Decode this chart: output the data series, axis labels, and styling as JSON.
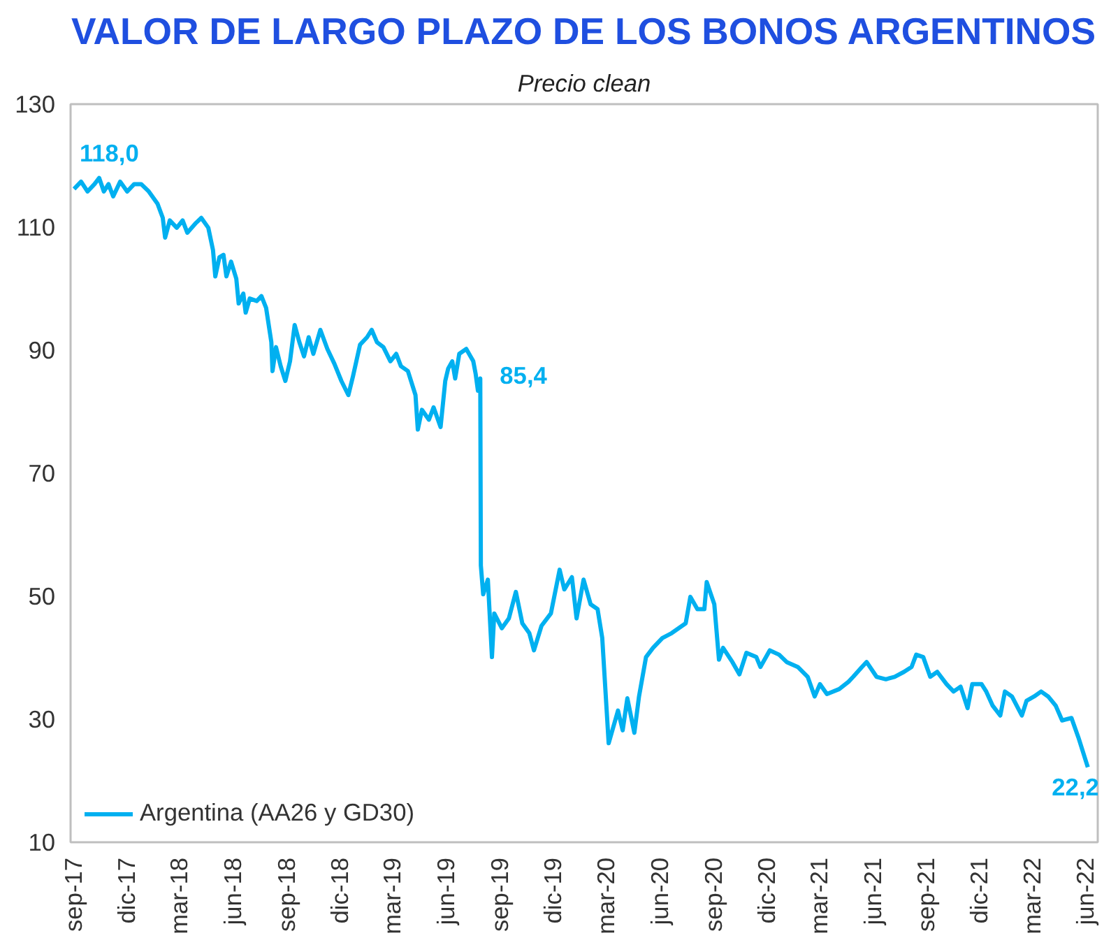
{
  "chart_data": {
    "type": "line",
    "title": "VALOR DE LARGO PLAZO DE LOS BONOS ARGENTINOS",
    "subtitle": "Precio clean",
    "x": [
      "2017-09-02",
      "2017-09-14",
      "2017-09-25",
      "2017-10-07",
      "2017-10-15",
      "2017-10-23",
      "2017-10-31",
      "2017-11-08",
      "2017-11-20",
      "2017-12-02",
      "2017-12-14",
      "2017-12-26",
      "2018-01-08",
      "2018-01-23",
      "2018-02-01",
      "2018-02-05",
      "2018-02-13",
      "2018-02-25",
      "2018-03-07",
      "2018-03-15",
      "2018-03-30",
      "2018-04-08",
      "2018-04-20",
      "2018-04-28",
      "2018-05-02",
      "2018-05-09",
      "2018-05-16",
      "2018-05-21",
      "2018-05-29",
      "2018-06-07",
      "2018-06-11",
      "2018-06-19",
      "2018-06-23",
      "2018-06-30",
      "2018-07-12",
      "2018-07-20",
      "2018-07-28",
      "2018-08-06",
      "2018-08-08",
      "2018-08-14",
      "2018-08-22",
      "2018-08-30",
      "2018-09-07",
      "2018-09-15",
      "2018-09-23",
      "2018-10-01",
      "2018-10-09",
      "2018-10-17",
      "2018-10-29",
      "2018-11-10",
      "2018-11-22",
      "2018-12-04",
      "2018-12-16",
      "2018-12-24",
      "2019-01-05",
      "2019-01-17",
      "2019-01-25",
      "2019-02-03",
      "2019-02-14",
      "2019-02-26",
      "2019-03-08",
      "2019-03-16",
      "2019-03-28",
      "2019-04-10",
      "2019-04-14",
      "2019-04-21",
      "2019-05-03",
      "2019-05-11",
      "2019-05-23",
      "2019-05-31",
      "2019-06-05",
      "2019-06-12",
      "2019-06-17",
      "2019-06-24",
      "2019-07-06",
      "2019-07-18",
      "2019-07-22",
      "2019-07-26",
      "2019-07-30",
      "2019-07-31",
      "2019-08-04",
      "2019-08-12",
      "2019-08-19",
      "2019-08-23",
      "2019-09-05",
      "2019-09-17",
      "2019-09-29",
      "2019-10-10",
      "2019-10-22",
      "2019-10-30",
      "2019-11-12",
      "2019-11-28",
      "2019-12-13",
      "2019-12-21",
      "2020-01-03",
      "2020-01-11",
      "2020-01-23",
      "2020-02-04",
      "2020-02-16",
      "2020-02-24",
      "2020-03-06",
      "2020-03-22",
      "2020-03-30",
      "2020-04-07",
      "2020-04-19",
      "2020-04-27",
      "2020-05-09",
      "2020-05-21",
      "2020-06-06",
      "2020-06-22",
      "2020-07-04",
      "2020-07-16",
      "2020-07-24",
      "2020-08-05",
      "2020-08-17",
      "2020-08-21",
      "2020-09-03",
      "2020-09-11",
      "2020-09-18",
      "2020-10-04",
      "2020-10-16",
      "2020-10-28",
      "2020-11-14",
      "2020-11-21",
      "2020-12-07",
      "2020-12-23",
      "2021-01-05",
      "2021-01-24",
      "2021-02-10",
      "2021-02-22",
      "2021-03-03",
      "2021-03-15",
      "2021-04-05",
      "2021-04-21",
      "2021-04-29",
      "2021-05-14",
      "2021-05-22",
      "2021-06-08",
      "2021-06-24",
      "2021-07-09",
      "2021-07-25",
      "2021-08-07",
      "2021-08-15",
      "2021-08-27",
      "2021-09-08",
      "2021-09-20",
      "2021-10-06",
      "2021-10-18",
      "2021-10-30",
      "2021-11-11",
      "2021-11-19",
      "2021-12-05",
      "2021-12-13",
      "2021-12-24",
      "2022-01-06",
      "2022-01-14",
      "2022-01-26",
      "2022-02-12",
      "2022-02-20",
      "2022-03-05",
      "2022-03-17",
      "2022-03-29",
      "2022-04-11",
      "2022-04-22",
      "2022-05-08",
      "2022-05-20",
      "2022-06-05"
    ],
    "series": [
      {
        "name": "Argentina (AA26 y GD30)",
        "color": "#00b0f0",
        "values": [
          116.2,
          117.4,
          115.8,
          117.0,
          118.0,
          115.8,
          117.0,
          115.0,
          117.4,
          115.8,
          117.0,
          117.0,
          115.8,
          113.8,
          111.5,
          108.3,
          111.1,
          109.9,
          111.1,
          109.1,
          110.7,
          111.5,
          109.9,
          106.3,
          102.0,
          105.1,
          105.5,
          102.0,
          104.4,
          101.6,
          97.6,
          99.2,
          96.1,
          98.4,
          98.0,
          98.8,
          96.9,
          91.3,
          86.6,
          90.5,
          87.4,
          85.0,
          88.2,
          94.1,
          91.3,
          89.0,
          92.1,
          89.4,
          93.3,
          90.2,
          87.8,
          85.0,
          82.7,
          85.8,
          90.9,
          92.1,
          93.3,
          91.3,
          90.5,
          88.2,
          89.4,
          87.4,
          86.6,
          82.7,
          77.1,
          80.3,
          78.7,
          80.7,
          77.5,
          85.0,
          87.0,
          88.2,
          85.4,
          89.4,
          90.2,
          88.2,
          86.2,
          83.4,
          85.4,
          55.0,
          50.3,
          52.7,
          40.1,
          47.2,
          44.8,
          46.4,
          50.7,
          45.6,
          44.0,
          41.2,
          45.2,
          47.2,
          54.3,
          51.1,
          53.1,
          46.4,
          52.7,
          48.7,
          47.9,
          43.2,
          26.1,
          31.4,
          28.2,
          33.4,
          27.8,
          33.7,
          40.1,
          41.6,
          43.2,
          44.0,
          44.8,
          45.6,
          49.9,
          47.9,
          47.9,
          52.3,
          48.7,
          39.7,
          41.6,
          39.3,
          37.3,
          40.8,
          40.1,
          38.5,
          41.2,
          40.5,
          39.3,
          38.5,
          36.9,
          33.7,
          35.7,
          34.1,
          34.9,
          36.1,
          36.9,
          38.5,
          39.3,
          36.9,
          36.5,
          36.9,
          37.7,
          38.5,
          40.5,
          40.1,
          36.9,
          37.7,
          35.7,
          34.5,
          35.3,
          31.8,
          35.7,
          35.7,
          34.5,
          32.2,
          30.6,
          34.5,
          33.7,
          30.6,
          33.0,
          33.7,
          34.5,
          33.7,
          32.2,
          29.8,
          30.2,
          27.0,
          22.2
        ]
      }
    ],
    "xlim": [
      "2017-08-27",
      "2022-06-22"
    ],
    "xticks": [
      {
        "value": "2017-09-01",
        "label": "sep-17"
      },
      {
        "value": "2017-12-01",
        "label": "dic-17"
      },
      {
        "value": "2018-03-01",
        "label": "mar-18"
      },
      {
        "value": "2018-06-01",
        "label": "jun-18"
      },
      {
        "value": "2018-09-01",
        "label": "sep-18"
      },
      {
        "value": "2018-12-01",
        "label": "dic-18"
      },
      {
        "value": "2019-03-01",
        "label": "mar-19"
      },
      {
        "value": "2019-06-01",
        "label": "jun-19"
      },
      {
        "value": "2019-09-01",
        "label": "sep-19"
      },
      {
        "value": "2019-12-01",
        "label": "dic-19"
      },
      {
        "value": "2020-03-01",
        "label": "mar-20"
      },
      {
        "value": "2020-06-01",
        "label": "jun-20"
      },
      {
        "value": "2020-09-01",
        "label": "sep-20"
      },
      {
        "value": "2020-12-01",
        "label": "dic-20"
      },
      {
        "value": "2021-03-01",
        "label": "mar-21"
      },
      {
        "value": "2021-06-01",
        "label": "jun-21"
      },
      {
        "value": "2021-09-01",
        "label": "sep-21"
      },
      {
        "value": "2021-12-01",
        "label": "dic-21"
      },
      {
        "value": "2022-03-01",
        "label": "mar-22"
      },
      {
        "value": "2022-06-01",
        "label": "jun-22"
      }
    ],
    "ylim": [
      10,
      130
    ],
    "yticks": [
      10,
      30,
      50,
      70,
      90,
      110,
      130
    ],
    "annotations": [
      {
        "text": "118,0",
        "x": "2017-10-15",
        "y": 118.0
      },
      {
        "text": "85,4",
        "x": "2019-07-30",
        "y": 85.4
      },
      {
        "text": "22,2",
        "x": "2022-06-05",
        "y": 22.2
      }
    ],
    "grid": false,
    "legend": "bottom left",
    "marker": "none",
    "line_style": "solid"
  }
}
